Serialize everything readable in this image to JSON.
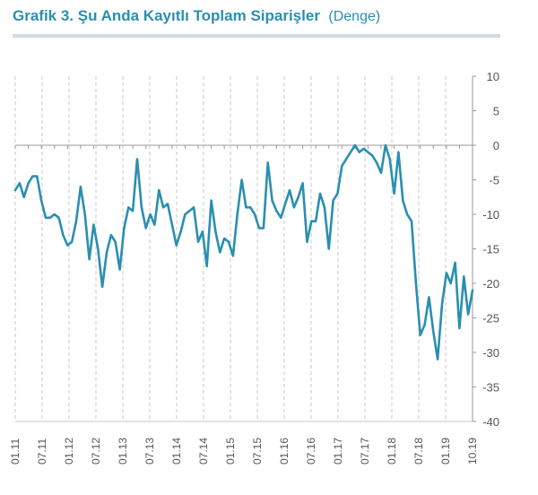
{
  "title": "Grafik 3. Şu Anda Kayıtlı Toplam Siparişler",
  "subtitle": "(Denge)",
  "colors": {
    "line": "#2a8fb0",
    "title": "#2a8fb0",
    "rule": "#cfdce6",
    "grid": "#c8c8c8",
    "axis": "#9a9a9a"
  },
  "chart_data": {
    "type": "line",
    "title": "Grafik 3. Şu Anda Kayıtlı Toplam Siparişler",
    "subtitle": "(Denge)",
    "xlabel": "",
    "ylabel": "",
    "ylim": [
      -40,
      10
    ],
    "yticks": [
      10,
      5,
      0,
      -5,
      -10,
      -15,
      -20,
      -25,
      -30,
      -35,
      -40
    ],
    "y_axis_side": "right",
    "x_tick_labels": [
      "01.11",
      "07.11",
      "01.12",
      "07.12",
      "01.13",
      "07.13",
      "01.14",
      "07.14",
      "01.15",
      "07.15",
      "01.16",
      "07.16",
      "01.17",
      "07.17",
      "01.18",
      "07.18",
      "01.19",
      "10.19"
    ],
    "grid": "vertical-dashed",
    "series": [
      {
        "values": [
          -6.5,
          -5.5,
          -7.5,
          -5.5,
          -4.5,
          -4.5,
          -8,
          -10.5,
          -10.5,
          -10,
          -10.5,
          -13,
          -14.5,
          -14,
          -11,
          -6,
          -10,
          -16.5,
          -11.5,
          -15,
          -20.5,
          -15.5,
          -13,
          -14,
          -18,
          -12,
          -9,
          -9.5,
          -2,
          -9,
          -12,
          -10,
          -11.5,
          -6.5,
          -9,
          -8.5,
          -11.5,
          -14.5,
          -12.5,
          -10,
          -9.5,
          -9,
          -14,
          -12.5,
          -17.5,
          -8,
          -12.5,
          -15.5,
          -13.5,
          -14,
          -16,
          -10,
          -5,
          -9,
          -9,
          -10,
          -12,
          -12,
          -2.5,
          -8,
          -9.5,
          -10.5,
          -8.5,
          -6.5,
          -9,
          -7.5,
          -5.5,
          -14,
          -11,
          -11,
          -7,
          -9,
          -15,
          -8,
          -7,
          -3,
          -2,
          -1,
          0,
          -1,
          -0.5,
          -1,
          -1.5,
          -2.5,
          -4,
          0,
          -2,
          -7,
          -1,
          -8,
          -10,
          -11,
          -20,
          -27.5,
          -26,
          -22,
          -27,
          -31,
          -23,
          -18.5,
          -20,
          -17,
          -26.5,
          -19,
          -24.5,
          -21
        ]
      }
    ]
  }
}
